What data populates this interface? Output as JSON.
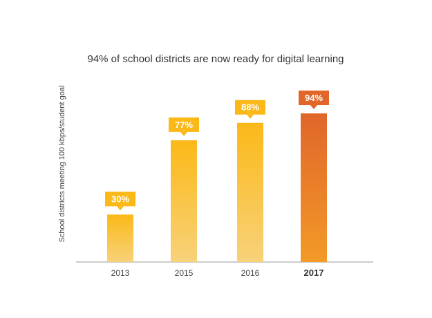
{
  "chart_data": {
    "type": "bar",
    "title": "94% of school districts are now ready for digital learning",
    "xlabel": "",
    "ylabel": "School districts meeting 100 kbps/student goal",
    "ylim": [
      0,
      100
    ],
    "grid": false,
    "categories": [
      "2013",
      "2015",
      "2016",
      "2017"
    ],
    "values": [
      30,
      77,
      88,
      94
    ],
    "data_labels": [
      "30%",
      "77%",
      "88%",
      "94%"
    ],
    "highlight_category": "2017",
    "colors": {
      "bar_top": "#fbb918",
      "bar_bottom": "#f8d27a",
      "label_bg": "#fbb918",
      "highlight_top": "#e0662a",
      "highlight_bottom": "#f39a28",
      "highlight_label_bg": "#e0662a",
      "axis": "#999999"
    }
  }
}
